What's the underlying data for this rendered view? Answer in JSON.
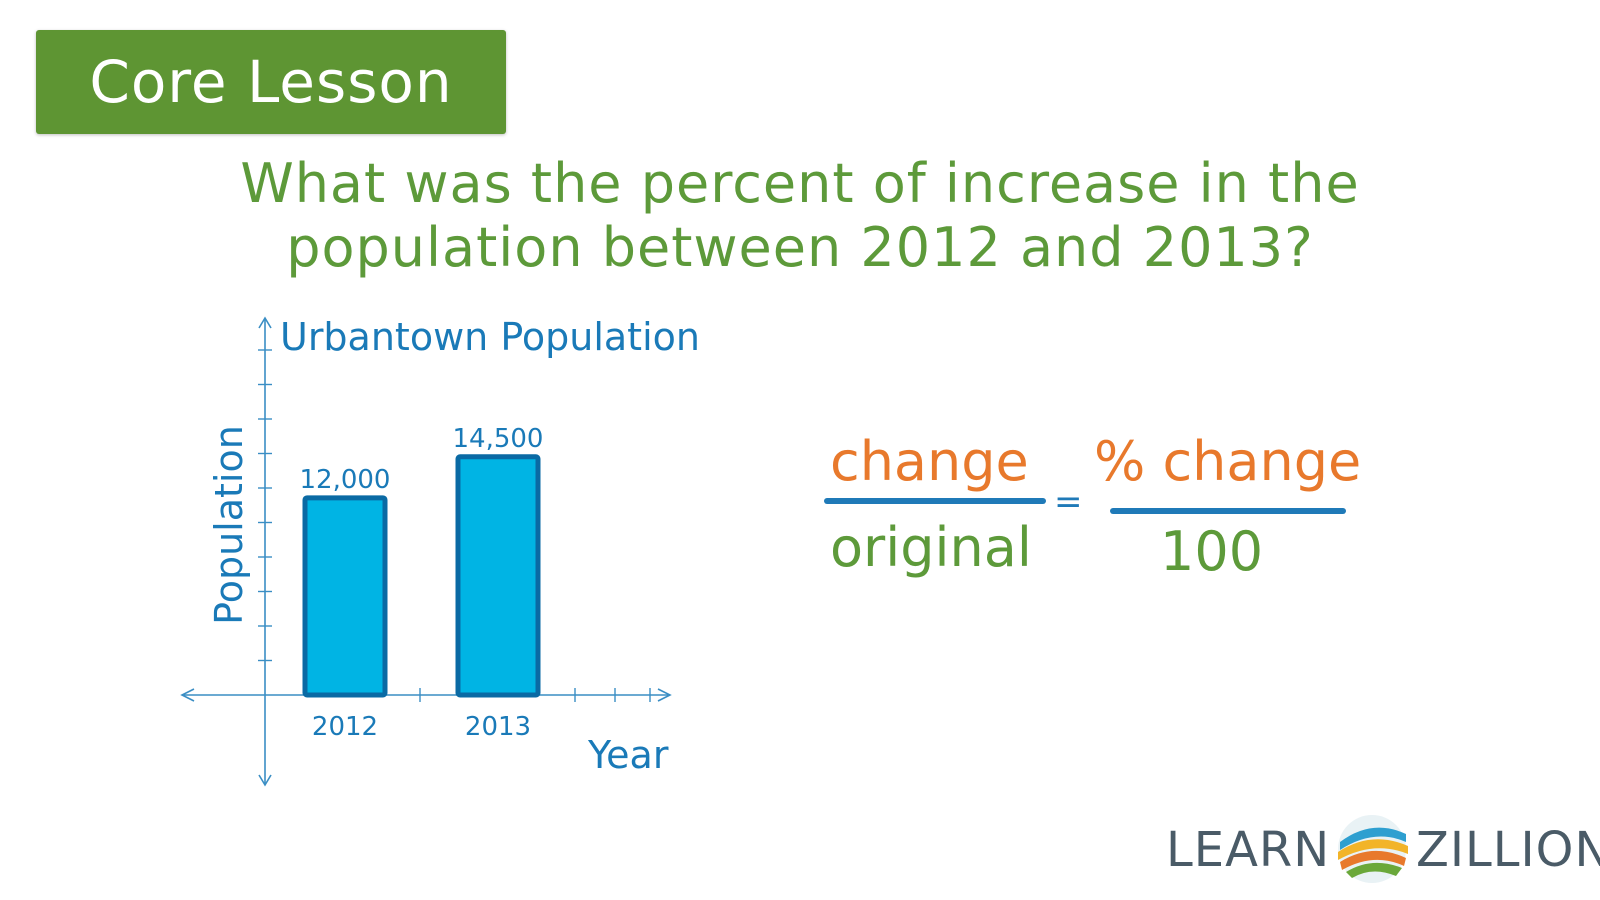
{
  "badge": {
    "label": "Core Lesson"
  },
  "question": {
    "line1": "What was the percent of increase in the",
    "line2": "population between 2012 and 2013?"
  },
  "colors": {
    "bar_fill": "#00b4e4",
    "bar_stroke": "#0a6aa4",
    "axis": "#3a8ec4",
    "chart_text": "#1a7ab8",
    "question_green": "#5d9a3a",
    "badge_green": "#5e9533",
    "formula_orange": "#e8792c",
    "formula_line": "#1f7ab8"
  },
  "chart_data": {
    "type": "bar",
    "title": "Urbantown Population",
    "xlabel": "Year",
    "ylabel": "Population",
    "categories": [
      "2012",
      "2013"
    ],
    "values": [
      12000,
      14500
    ],
    "data_labels": [
      "12,000",
      "14,500"
    ],
    "ylim": [
      0,
      21000
    ],
    "grid": false,
    "legend": "none"
  },
  "formula": {
    "left_numerator": "change",
    "left_denominator": "original",
    "equals": "=",
    "right_numerator": "% change",
    "right_denominator": "100"
  },
  "logo": {
    "left": "LEARN",
    "right": "ZILLION",
    "icon": "learnzillion-swoosh-icon"
  }
}
